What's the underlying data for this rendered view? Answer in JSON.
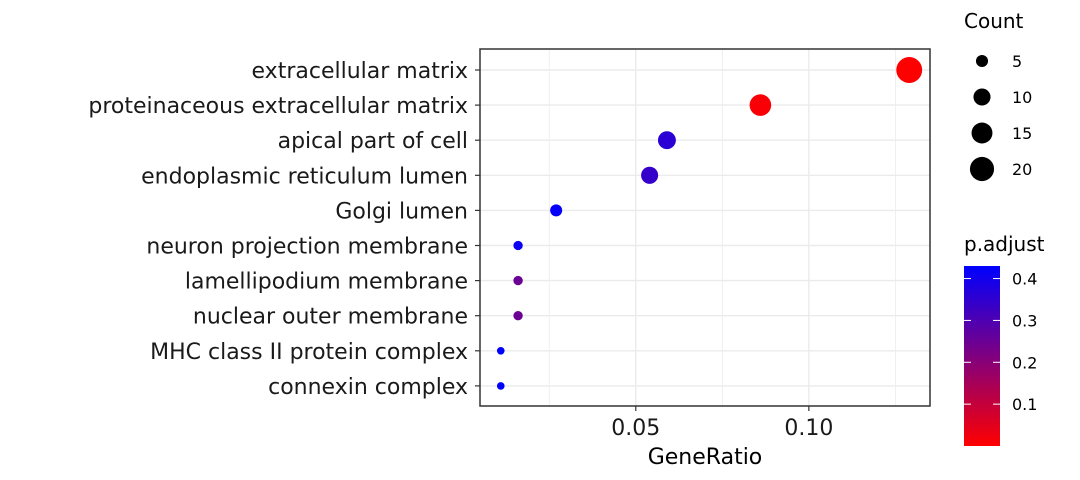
{
  "chart_data": {
    "type": "scatter",
    "xlabel": "GeneRatio",
    "xlim": [
      0.005,
      0.135
    ],
    "xticks": [
      0.05,
      0.1
    ],
    "xtick_labels": [
      "0.05",
      "0.10"
    ],
    "grid": true,
    "categories": [
      "extracellular matrix",
      "proteinaceous extracellular matrix",
      "apical part of cell",
      "endoplasmic reticulum lumen",
      "Golgi lumen",
      "neuron projection membrane",
      "lamellipodium membrane",
      "nuclear outer membrane",
      "MHC class II protein complex",
      "connexin complex"
    ],
    "points": [
      {
        "term": "extracellular matrix",
        "gene_ratio": 0.129,
        "count": 23,
        "p_adjust": 0.0
      },
      {
        "term": "proteinaceous extracellular matrix",
        "gene_ratio": 0.086,
        "count": 16,
        "p_adjust": 0.01
      },
      {
        "term": "apical part of cell",
        "gene_ratio": 0.059,
        "count": 11,
        "p_adjust": 0.36
      },
      {
        "term": "endoplasmic reticulum lumen",
        "gene_ratio": 0.054,
        "count": 10,
        "p_adjust": 0.34
      },
      {
        "term": "Golgi lumen",
        "gene_ratio": 0.027,
        "count": 5,
        "p_adjust": 0.42
      },
      {
        "term": "neuron projection membrane",
        "gene_ratio": 0.016,
        "count": 3,
        "p_adjust": 0.41
      },
      {
        "term": "lamellipodium membrane",
        "gene_ratio": 0.016,
        "count": 3,
        "p_adjust": 0.25
      },
      {
        "term": "nuclear outer membrane",
        "gene_ratio": 0.016,
        "count": 3,
        "p_adjust": 0.25
      },
      {
        "term": "MHC class II protein complex",
        "gene_ratio": 0.011,
        "count": 2,
        "p_adjust": 0.43
      },
      {
        "term": "connexin complex",
        "gene_ratio": 0.011,
        "count": 2,
        "p_adjust": 0.43
      }
    ],
    "legend_size": {
      "title": "Count",
      "values": [
        5,
        10,
        15,
        20
      ],
      "labels": [
        "5",
        "10",
        "15",
        "20"
      ]
    },
    "legend_color": {
      "title": "p.adjust",
      "low_color": "#ff0000",
      "high_color": "#0000ff",
      "range": [
        0.0,
        0.43
      ],
      "ticks": [
        0.1,
        0.2,
        0.3,
        0.4
      ],
      "tick_labels": [
        "0.1",
        "0.2",
        "0.3",
        "0.4"
      ]
    },
    "legend_position": "right"
  }
}
